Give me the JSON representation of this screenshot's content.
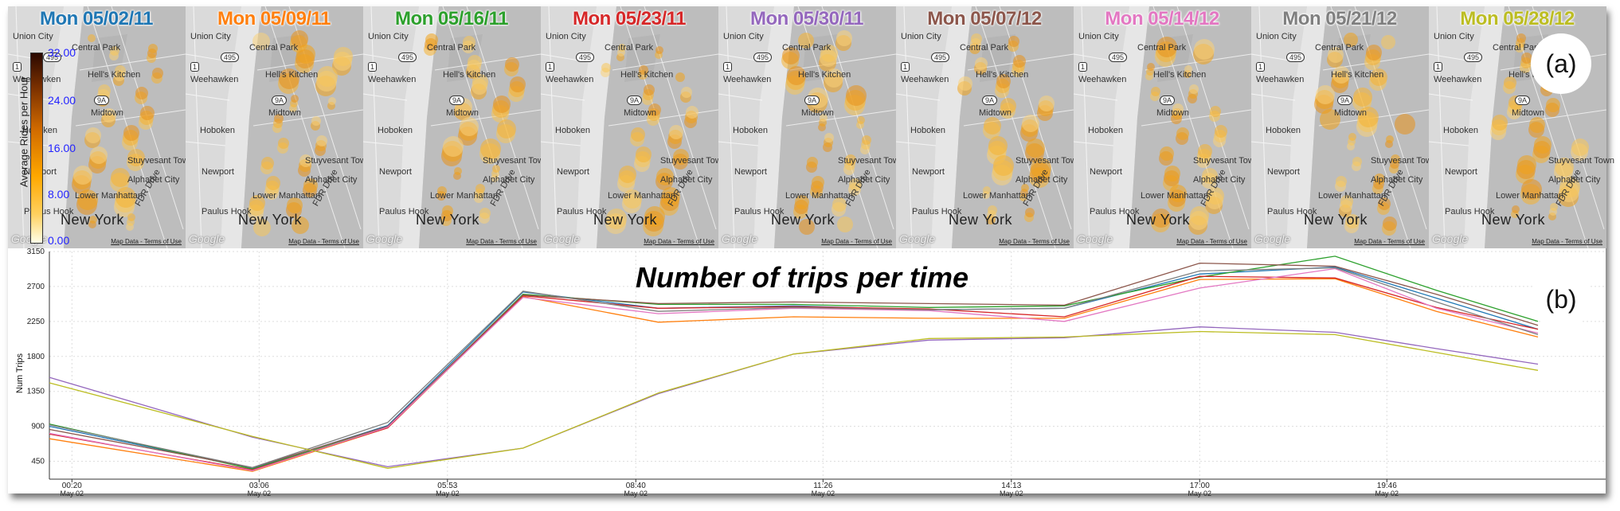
{
  "panel_a": {
    "label": "(a)",
    "tiles": [
      {
        "title": "Mon 05/02/11",
        "color": "#1f77b4"
      },
      {
        "title": "Mon 05/09/11",
        "color": "#ff7f0e"
      },
      {
        "title": "Mon 05/16/11",
        "color": "#2ca02c"
      },
      {
        "title": "Mon 05/23/11",
        "color": "#d62728"
      },
      {
        "title": "Mon 05/30/11",
        "color": "#9467bd"
      },
      {
        "title": "Mon 05/07/12",
        "color": "#8c564b"
      },
      {
        "title": "Mon 05/14/12",
        "color": "#e377c2"
      },
      {
        "title": "Mon 05/21/12",
        "color": "#7f7f7f"
      },
      {
        "title": "Mon 05/28/12",
        "color": "#bcbd22"
      }
    ],
    "map_labels": {
      "union_city": "Union City",
      "central_park": "Central Park",
      "weehawken": "Weehawken",
      "hells_kitchen": "Hell's Kitchen",
      "hoboken": "Hoboken",
      "midtown": "Midtown",
      "newport": "Newport",
      "stuyvesant": "Stuyvesant Town",
      "alphabet": "Alphabet City",
      "lower_manhattan": "Lower Manhattan",
      "paulus_hook": "Paulus Hook",
      "new_york": "New York",
      "fdr": "FDR Drive",
      "google": "Google",
      "terms": "Map Data - Terms of Use",
      "shield_495": "495",
      "shield_9a": "9A",
      "shield_1": "1"
    },
    "colorbar": {
      "title": "Average Rides per Hour",
      "ticks": [
        "32.00",
        "24.00",
        "16.00",
        "8.00",
        "0.00"
      ]
    }
  },
  "panel_b": {
    "label": "(b)"
  },
  "chart_data": {
    "type": "line",
    "title": "Number of trips per time",
    "xlabel": "",
    "ylabel": "Num Trips",
    "ylim": [
      220,
      3150
    ],
    "yticks": [
      450,
      900,
      1350,
      1800,
      2250,
      2700,
      3150
    ],
    "ytick_labels": [
      "450",
      "900",
      "1350",
      "1800",
      "2250",
      "2700",
      "3150"
    ],
    "xlim": [
      "00:00",
      "23:00"
    ],
    "xtick_labels": [
      {
        "time": "00:20",
        "date": "May 02"
      },
      {
        "time": "03:06",
        "date": "May 02"
      },
      {
        "time": "05:53",
        "date": "May 02"
      },
      {
        "time": "08:40",
        "date": "May 02"
      },
      {
        "time": "11:26",
        "date": "May 02"
      },
      {
        "time": "14:13",
        "date": "May 02"
      },
      {
        "time": "17:00",
        "date": "May 02"
      },
      {
        "time": "19:46",
        "date": "May 02"
      }
    ],
    "x": [
      "00:00",
      "03:00",
      "05:00",
      "07:00",
      "09:00",
      "11:00",
      "13:00",
      "15:00",
      "17:00",
      "19:00",
      "20:30",
      "22:00"
    ],
    "grid": true,
    "series": [
      {
        "color": "#1f77b4",
        "values": [
          900,
          360,
          910,
          2630,
          2420,
          2450,
          2400,
          2420,
          2860,
          2950,
          2550,
          2150
        ]
      },
      {
        "color": "#ff7f0e",
        "values": [
          740,
          320,
          880,
          2570,
          2240,
          2310,
          2290,
          2290,
          2790,
          2800,
          2380,
          2050
        ]
      },
      {
        "color": "#2ca02c",
        "values": [
          930,
          350,
          890,
          2600,
          2470,
          2470,
          2430,
          2450,
          2820,
          3090,
          2650,
          2250
        ]
      },
      {
        "color": "#d62728",
        "values": [
          800,
          340,
          880,
          2580,
          2420,
          2440,
          2410,
          2310,
          2830,
          2810,
          2430,
          2150
        ]
      },
      {
        "color": "#9467bd",
        "values": [
          1530,
          760,
          380,
          620,
          1320,
          1830,
          2010,
          2040,
          2180,
          2110,
          1900,
          1700
        ]
      },
      {
        "color": "#8c564b",
        "values": [
          860,
          370,
          900,
          2590,
          2480,
          2500,
          2480,
          2460,
          3000,
          2960,
          2600,
          2200
        ]
      },
      {
        "color": "#e377c2",
        "values": [
          810,
          330,
          890,
          2560,
          2350,
          2420,
          2390,
          2250,
          2680,
          2930,
          2420,
          2100
        ]
      },
      {
        "color": "#7f7f7f",
        "values": [
          920,
          370,
          950,
          2640,
          2380,
          2430,
          2400,
          2420,
          2900,
          2940,
          2500,
          2080
        ]
      },
      {
        "color": "#bcbd22",
        "values": [
          1460,
          770,
          360,
          620,
          1330,
          1830,
          2030,
          2050,
          2120,
          2080,
          1850,
          1620
        ]
      }
    ]
  }
}
